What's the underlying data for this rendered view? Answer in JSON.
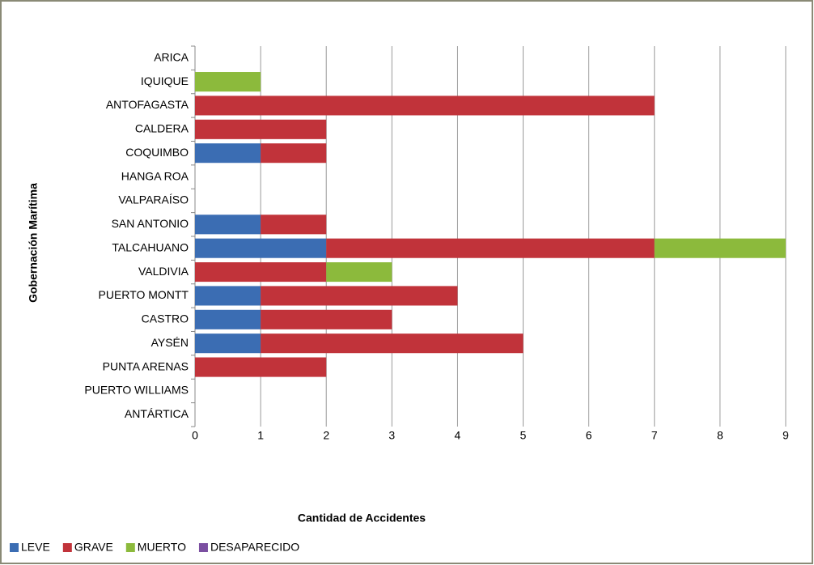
{
  "chart_data": {
    "type": "stacked_barh",
    "xlabel": "Cantidad de Accidentes",
    "ylabel": "Gobernación Marítima",
    "categories": [
      "ARICA",
      "IQUIQUE",
      "ANTOFAGASTA",
      "CALDERA",
      "COQUIMBO",
      "HANGA ROA",
      "VALPARAÍSO",
      "SAN ANTONIO",
      "TALCAHUANO",
      "VALDIVIA",
      "PUERTO MONTT",
      "CASTRO",
      "AYSÉN",
      "PUNTA ARENAS",
      "PUERTO WILLIAMS",
      "ANTÁRTICA"
    ],
    "series": [
      {
        "name": "LEVE",
        "color": "#3b6db3",
        "values": [
          0,
          0,
          0,
          0,
          1,
          0,
          0,
          1,
          2,
          0,
          1,
          1,
          1,
          0,
          0,
          0
        ]
      },
      {
        "name": "GRAVE",
        "color": "#c1333a",
        "values": [
          0,
          0,
          7,
          2,
          1,
          0,
          0,
          1,
          5,
          2,
          3,
          2,
          4,
          2,
          0,
          0
        ]
      },
      {
        "name": "MUERTO",
        "color": "#8cba3c",
        "values": [
          0,
          1,
          0,
          0,
          0,
          0,
          0,
          0,
          2,
          1,
          0,
          0,
          0,
          0,
          0,
          0
        ]
      },
      {
        "name": "DESAPARECIDO",
        "color": "#7b4fa1",
        "values": [
          0,
          0,
          0,
          0,
          0,
          0,
          0,
          0,
          0,
          0,
          0,
          0,
          0,
          0,
          0,
          0
        ]
      }
    ],
    "xlim": [
      0,
      9
    ],
    "xticks": [
      0,
      1,
      2,
      3,
      4,
      5,
      6,
      7,
      8,
      9
    ],
    "grid": true,
    "legend": "bottom-left"
  }
}
